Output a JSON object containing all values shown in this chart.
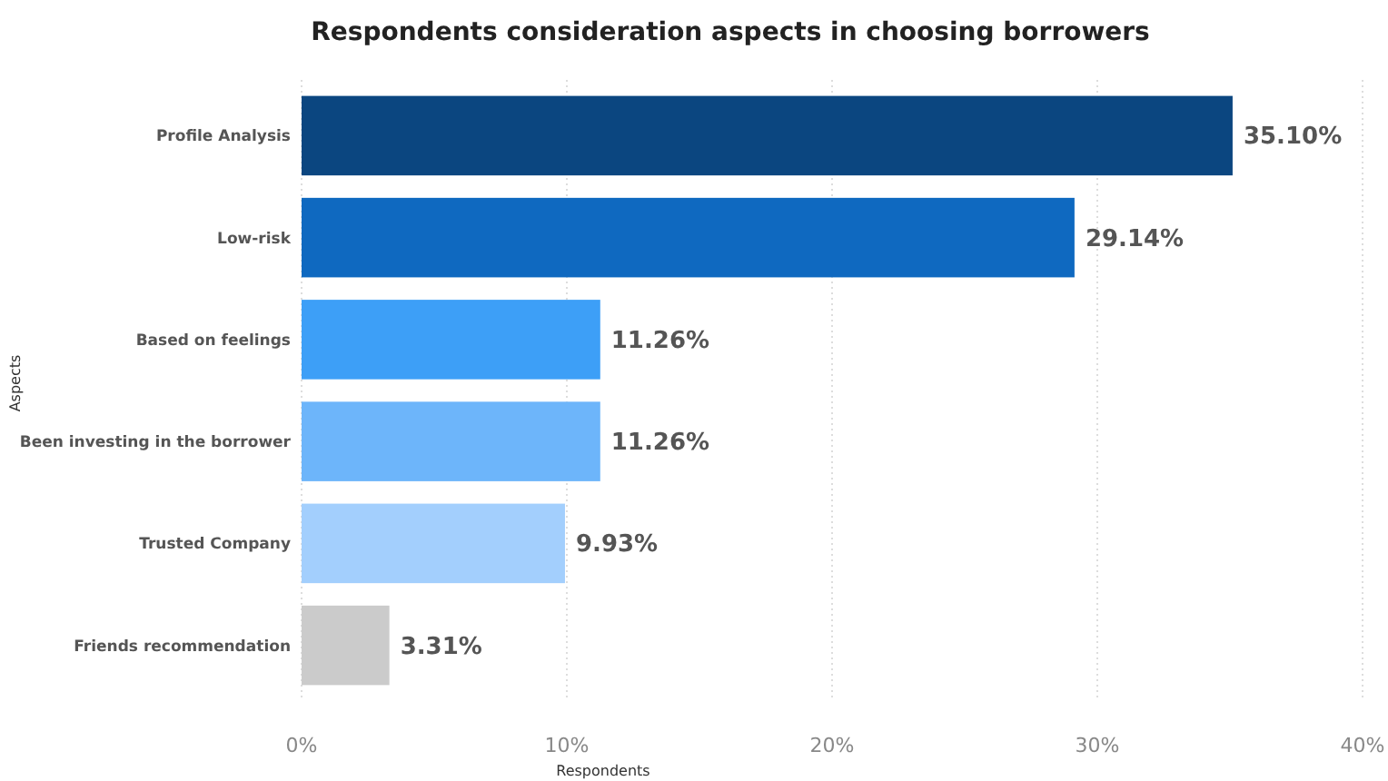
{
  "chart_data": {
    "type": "bar",
    "orientation": "horizontal",
    "title": "Respondents consideration aspects in choosing borrowers",
    "xlabel": "Respondents",
    "ylabel": "Aspects",
    "categories": [
      "Profile Analysis",
      "Low-risk",
      "Based on feelings",
      "Been investing in the borrower",
      "Trusted Company",
      "Friends recommendation"
    ],
    "values": [
      35.1,
      29.14,
      11.26,
      11.26,
      9.93,
      3.31
    ],
    "value_labels": [
      "35.10%",
      "29.14%",
      "11.26%",
      "11.26%",
      "9.93%",
      "3.31%"
    ],
    "colors": [
      "#0b4680",
      "#0f69c0",
      "#3d9ff7",
      "#6db5fa",
      "#a3cffd",
      "#cbcbcb"
    ],
    "xlim": [
      0,
      40
    ],
    "xticks": [
      {
        "value": 0,
        "label": "0%"
      },
      {
        "value": 10,
        "label": "10%"
      },
      {
        "value": 20,
        "label": "20%"
      },
      {
        "value": 30,
        "label": "30%"
      },
      {
        "value": 40,
        "label": "40%"
      }
    ],
    "grid": "x"
  }
}
